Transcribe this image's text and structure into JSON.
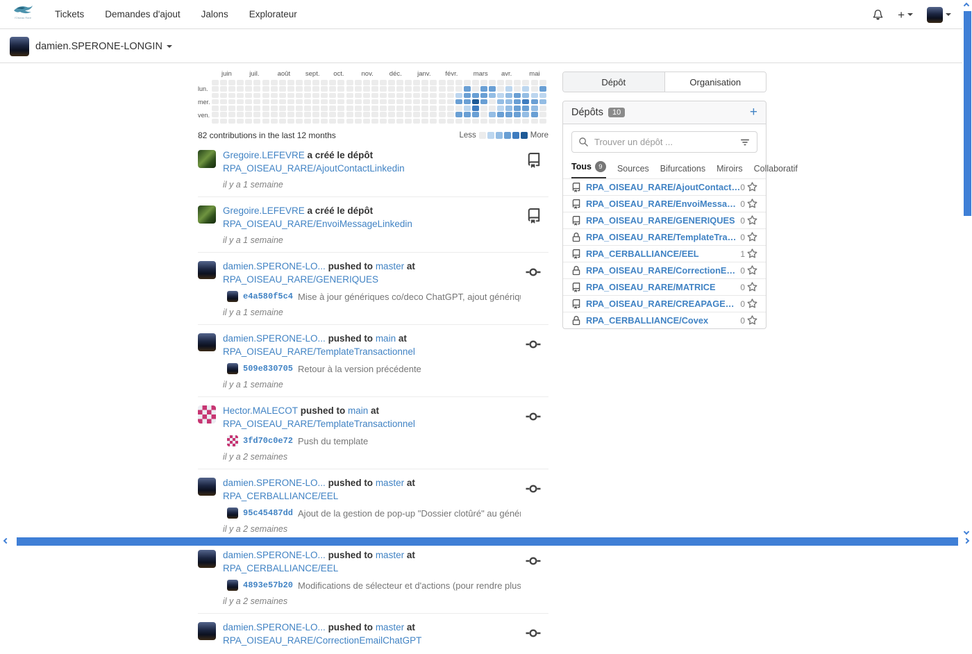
{
  "navbar": {
    "logo_subtitle": "l'Oiseau Rare",
    "menu": [
      {
        "label": "Tickets"
      },
      {
        "label": "Demandes d'ajout"
      },
      {
        "label": "Jalons"
      },
      {
        "label": "Explorateur"
      }
    ]
  },
  "subheader": {
    "username": "damien.SPERONE-LONGIN"
  },
  "strings": {
    "at": "at"
  },
  "chart_data": {
    "type": "heatmap",
    "title": "contribution calendar",
    "summary": "82 contributions in the last 12 months",
    "less_label": "Less",
    "more_label": "More",
    "months": [
      "juin",
      "juil.",
      "août",
      "sept.",
      "oct.",
      "nov.",
      "déc.",
      "janv.",
      "févr.",
      "mars",
      "avr.",
      "mai"
    ],
    "row_labels": [
      {
        "text": "lun.",
        "row": 1
      },
      {
        "text": "mer.",
        "row": 3
      },
      {
        "text": "ven.",
        "row": 5
      }
    ],
    "levels": [
      "#ececec",
      "#bcd6ef",
      "#94bde4",
      "#699fd4",
      "#3e7cbf",
      "#1e5a96"
    ],
    "total_columns": 40,
    "columns": {
      "29": [
        0,
        0,
        1,
        3,
        0,
        3,
        0
      ],
      "30": [
        0,
        3,
        3,
        3,
        1,
        3,
        0
      ],
      "31": [
        0,
        0,
        3,
        5,
        4,
        3,
        0
      ],
      "32": [
        0,
        3,
        3,
        3,
        0,
        0,
        0
      ],
      "33": [
        0,
        3,
        2,
        0,
        0,
        2,
        0
      ],
      "34": [
        0,
        0,
        1,
        2,
        1,
        3,
        0
      ],
      "35": [
        0,
        1,
        2,
        2,
        2,
        3,
        0
      ],
      "36": [
        0,
        0,
        3,
        3,
        3,
        3,
        0
      ],
      "37": [
        0,
        1,
        2,
        4,
        3,
        2,
        0
      ],
      "38": [
        0,
        0,
        1,
        3,
        2,
        3,
        0
      ],
      "39": [
        0,
        3,
        1,
        2,
        0,
        0,
        0
      ]
    }
  },
  "feed": {
    "items": [
      {
        "user": "Gregoire.LEFEVRE",
        "avatar": "gregoire",
        "action": "a créé le dépôt",
        "repo": "RPA_OISEAU_RARE/AjoutContactLinkedin",
        "time": "il y a 1 semaine",
        "icon": "repo"
      },
      {
        "user": "Gregoire.LEFEVRE",
        "avatar": "gregoire",
        "action": "a créé le dépôt",
        "repo": "RPA_OISEAU_RARE/EnvoiMessageLinkedin",
        "time": "il y a 1 semaine",
        "icon": "repo"
      },
      {
        "user": "damien.SPERONE-LO...",
        "avatar": "damien",
        "action": "pushed to",
        "branch": "master",
        "repo": "RPA_OISEAU_RARE/GENERIQUES",
        "commit": {
          "sha": "e4a580f5c4",
          "msg": "Mise à jour génériques co/deco ChatGPT, ajout génériques co/deco/res..."
        },
        "time": "il y a 1 semaine",
        "icon": "commit"
      },
      {
        "user": "damien.SPERONE-LO...",
        "avatar": "damien",
        "action": "pushed to",
        "branch": "main",
        "repo": "RPA_OISEAU_RARE/TemplateTransactionnel",
        "commit": {
          "sha": "509e830705",
          "msg": "Retour à la version précédente"
        },
        "time": "il y a 1 semaine",
        "icon": "commit"
      },
      {
        "user": "Hector.MALECOT",
        "avatar": "hector",
        "action": "pushed to",
        "branch": "main",
        "repo": "RPA_OISEAU_RARE/TemplateTransactionnel",
        "commit": {
          "sha": "3fd70c0e72",
          "msg": "Push du template"
        },
        "time": "il y a 2 semaines",
        "icon": "commit"
      },
      {
        "user": "damien.SPERONE-LO...",
        "avatar": "damien",
        "action": "pushed to",
        "branch": "master",
        "repo": "RPA_CERBALLIANCE/EEL",
        "commit": {
          "sha": "95c45487dd",
          "msg": "Ajout de la gestion de pop-up \"Dossier clotûré\" au générique de Réinitia..."
        },
        "time": "il y a 2 semaines",
        "icon": "commit"
      },
      {
        "user": "damien.SPERONE-LO...",
        "avatar": "damien",
        "action": "pushed to",
        "branch": "master",
        "repo": "RPA_CERBALLIANCE/EEL",
        "commit": {
          "sha": "4893e57b20",
          "msg": "Modifications de sélecteur et d'actions (pour rendre plus robuste) lors d..."
        },
        "time": "il y a 2 semaines",
        "icon": "commit"
      },
      {
        "user": "damien.SPERONE-LO...",
        "avatar": "damien",
        "action": "pushed to",
        "branch": "master",
        "repo": "RPA_OISEAU_RARE/CorrectionEmailChatGPT",
        "icon": "commit"
      }
    ]
  },
  "sidebar": {
    "tabs": [
      {
        "label": "Dépôt",
        "active": true
      },
      {
        "label": "Organisation",
        "active": false
      }
    ],
    "repos_title": "Dépôts",
    "repos_count": "10",
    "add_label": "+",
    "search_placeholder": "Trouver un dépôt ...",
    "filters": [
      {
        "label": "Tous",
        "badge": "9",
        "active": true
      },
      {
        "label": "Sources"
      },
      {
        "label": "Bifurcations"
      },
      {
        "label": "Miroirs"
      },
      {
        "label": "Collaboratif"
      }
    ],
    "repos": [
      {
        "name": "RPA_OISEAU_RARE/AjoutContactLinkedin",
        "private": false,
        "stars": "0"
      },
      {
        "name": "RPA_OISEAU_RARE/EnvoiMessageLinkedin",
        "private": false,
        "stars": "0"
      },
      {
        "name": "RPA_OISEAU_RARE/GENERIQUES",
        "private": false,
        "stars": "0"
      },
      {
        "name": "RPA_OISEAU_RARE/TemplateTransactionnel",
        "private": true,
        "stars": "0"
      },
      {
        "name": "RPA_CERBALLIANCE/EEL",
        "private": false,
        "stars": "1"
      },
      {
        "name": "RPA_OISEAU_RARE/CorrectionEmailChatGPT",
        "private": true,
        "stars": "0"
      },
      {
        "name": "RPA_OISEAU_RARE/MATRICE",
        "private": false,
        "stars": "0"
      },
      {
        "name": "RPA_OISEAU_RARE/CREAPAGECATALOGUE",
        "private": false,
        "stars": "0"
      },
      {
        "name": "RPA_CERBALLIANCE/Covex",
        "private": true,
        "stars": "0"
      }
    ]
  }
}
